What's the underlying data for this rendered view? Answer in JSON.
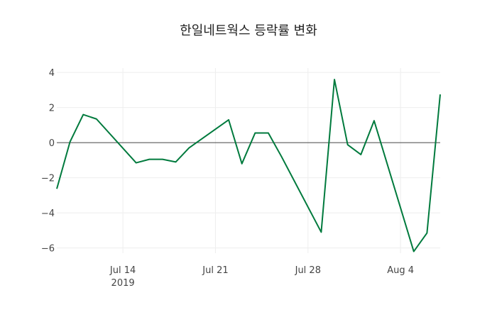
{
  "chart_data": {
    "type": "line",
    "title": "한일네트웍스 등락률 변화",
    "xlabel": "",
    "ylabel": "",
    "x": [
      "2019-07-09",
      "2019-07-10",
      "2019-07-11",
      "2019-07-12",
      "2019-07-15",
      "2019-07-16",
      "2019-07-17",
      "2019-07-18",
      "2019-07-19",
      "2019-07-22",
      "2019-07-23",
      "2019-07-24",
      "2019-07-25",
      "2019-07-26",
      "2019-07-29",
      "2019-07-30",
      "2019-07-31",
      "2019-08-01",
      "2019-08-02",
      "2019-08-05",
      "2019-08-06",
      "2019-08-07"
    ],
    "series": [
      {
        "name": "등락률",
        "color": "#007a3d",
        "values": [
          -2.63,
          0.05,
          1.6,
          1.35,
          -1.15,
          -0.95,
          -0.95,
          -1.1,
          -0.3,
          1.3,
          -1.2,
          0.55,
          0.55,
          -0.8,
          -5.1,
          3.6,
          -0.12,
          -0.68,
          1.25,
          -6.2,
          -5.15,
          2.75
        ]
      }
    ],
    "xlim": [
      "2019-07-09",
      "2019-08-07"
    ],
    "ylim": [
      -6.3,
      4.25
    ],
    "yticks": [
      4,
      2,
      0,
      -2,
      -4,
      -6
    ],
    "ytick_labels": [
      "4",
      "2",
      "0",
      "−2",
      "−4",
      "−6"
    ],
    "xticks": [
      "2019-07-14",
      "2019-07-21",
      "2019-07-28",
      "2019-08-04"
    ],
    "xtick_labels": [
      "Jul 14",
      "Jul 21",
      "Jul 28",
      "Aug 4"
    ],
    "xtick_sublabel": "2019",
    "grid": true,
    "legend": "none"
  }
}
